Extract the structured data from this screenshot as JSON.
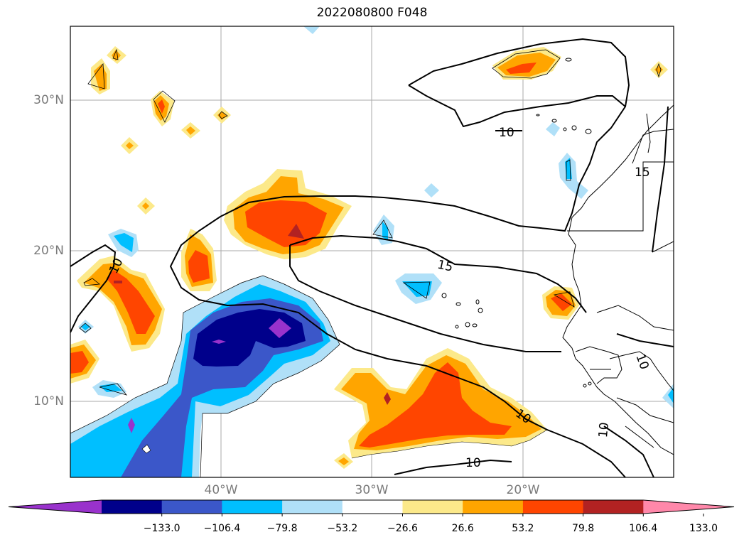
{
  "title": "2022080800 F048",
  "lat_labels": [
    "30°N",
    "20°N",
    "10°N"
  ],
  "lon_labels": [
    "40°W",
    "30°W",
    "20°W"
  ],
  "contour_labels": [
    "10",
    "10",
    "10",
    "10",
    "10",
    "10",
    "15",
    "15"
  ],
  "colorbar": {
    "ticks": [
      "−133.0",
      "−106.4",
      "−79.8",
      "−53.2",
      "−26.6",
      "26.6",
      "53.2",
      "79.8",
      "106.4",
      "133.0"
    ],
    "colors": [
      "#9932cc",
      "#00008b",
      "#3b57c9",
      "#00bfff",
      "#b0e0f8",
      "#ffffff",
      "#fce98a",
      "#ffa500",
      "#ff4500",
      "#b22222",
      "#ff88aa"
    ]
  },
  "palette": {
    "dark_purple": "#9932cc",
    "navy": "#00008b",
    "royal_blue": "#3b57c9",
    "deep_sky": "#00bfff",
    "light_blue": "#b0e0f8",
    "light_yellow": "#fce98a",
    "orange": "#ffa500",
    "red_orange": "#ff4500",
    "firebrick": "#b22222"
  }
}
